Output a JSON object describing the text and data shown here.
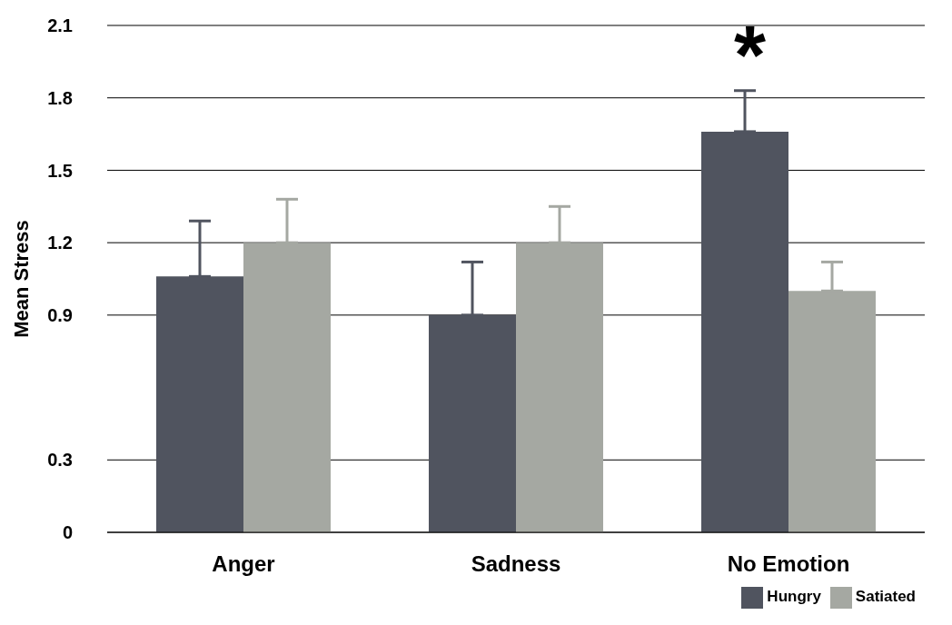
{
  "chart_data": {
    "type": "bar",
    "ylabel": "Mean Stress",
    "categories": [
      "Anger",
      "Sadness",
      "No Emotion"
    ],
    "series": [
      {
        "name": "Hungry",
        "color": "#50545f",
        "values": [
          1.06,
          0.9,
          1.66
        ],
        "errors": [
          [
            1.06,
            1.29
          ],
          [
            0.9,
            1.12
          ],
          [
            1.66,
            1.83
          ]
        ]
      },
      {
        "name": "Satiated",
        "color": "#a5a8a2",
        "values": [
          1.2,
          1.2,
          1.0
        ],
        "errors": [
          [
            1.2,
            1.38
          ],
          [
            1.2,
            1.35
          ],
          [
            1.0,
            1.12
          ]
        ]
      }
    ],
    "ylim": [
      0,
      2.1
    ],
    "yticks": [
      0,
      0.3,
      0.9,
      1.2,
      1.5,
      1.8,
      2.1
    ],
    "grid": "y",
    "legend": "bottom right",
    "annotations": [
      "*"
    ]
  }
}
